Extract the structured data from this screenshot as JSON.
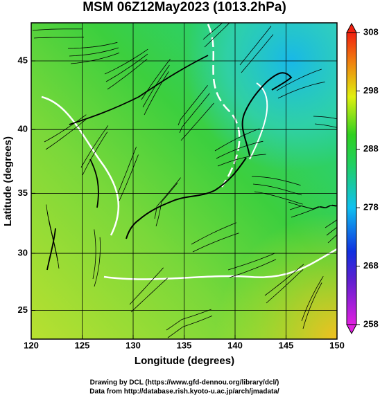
{
  "chart_data": {
    "type": "map",
    "title": "MSM 06Z12May2023 (1013.2hPa)",
    "xlabel": "Longitude (degrees)",
    "ylabel": "Latitude  (degrees)",
    "xlim": [
      120,
      150
    ],
    "xticks": [
      120,
      125,
      130,
      135,
      140,
      145,
      150
    ],
    "ylim": [
      22.4,
      47.6
    ],
    "yticks": [
      25,
      30,
      35,
      40,
      45
    ],
    "projection": "mercator",
    "grid": true,
    "clim": [
      258,
      308
    ],
    "cticks": [
      258,
      268,
      278,
      288,
      298,
      308
    ],
    "credits": [
      "Drawing by DCL (https://www.gfd-dennou.org/library/dcl/)",
      "Data from http://database.rish.kyoto-u.ac.jp/arch/jmadata/"
    ]
  }
}
